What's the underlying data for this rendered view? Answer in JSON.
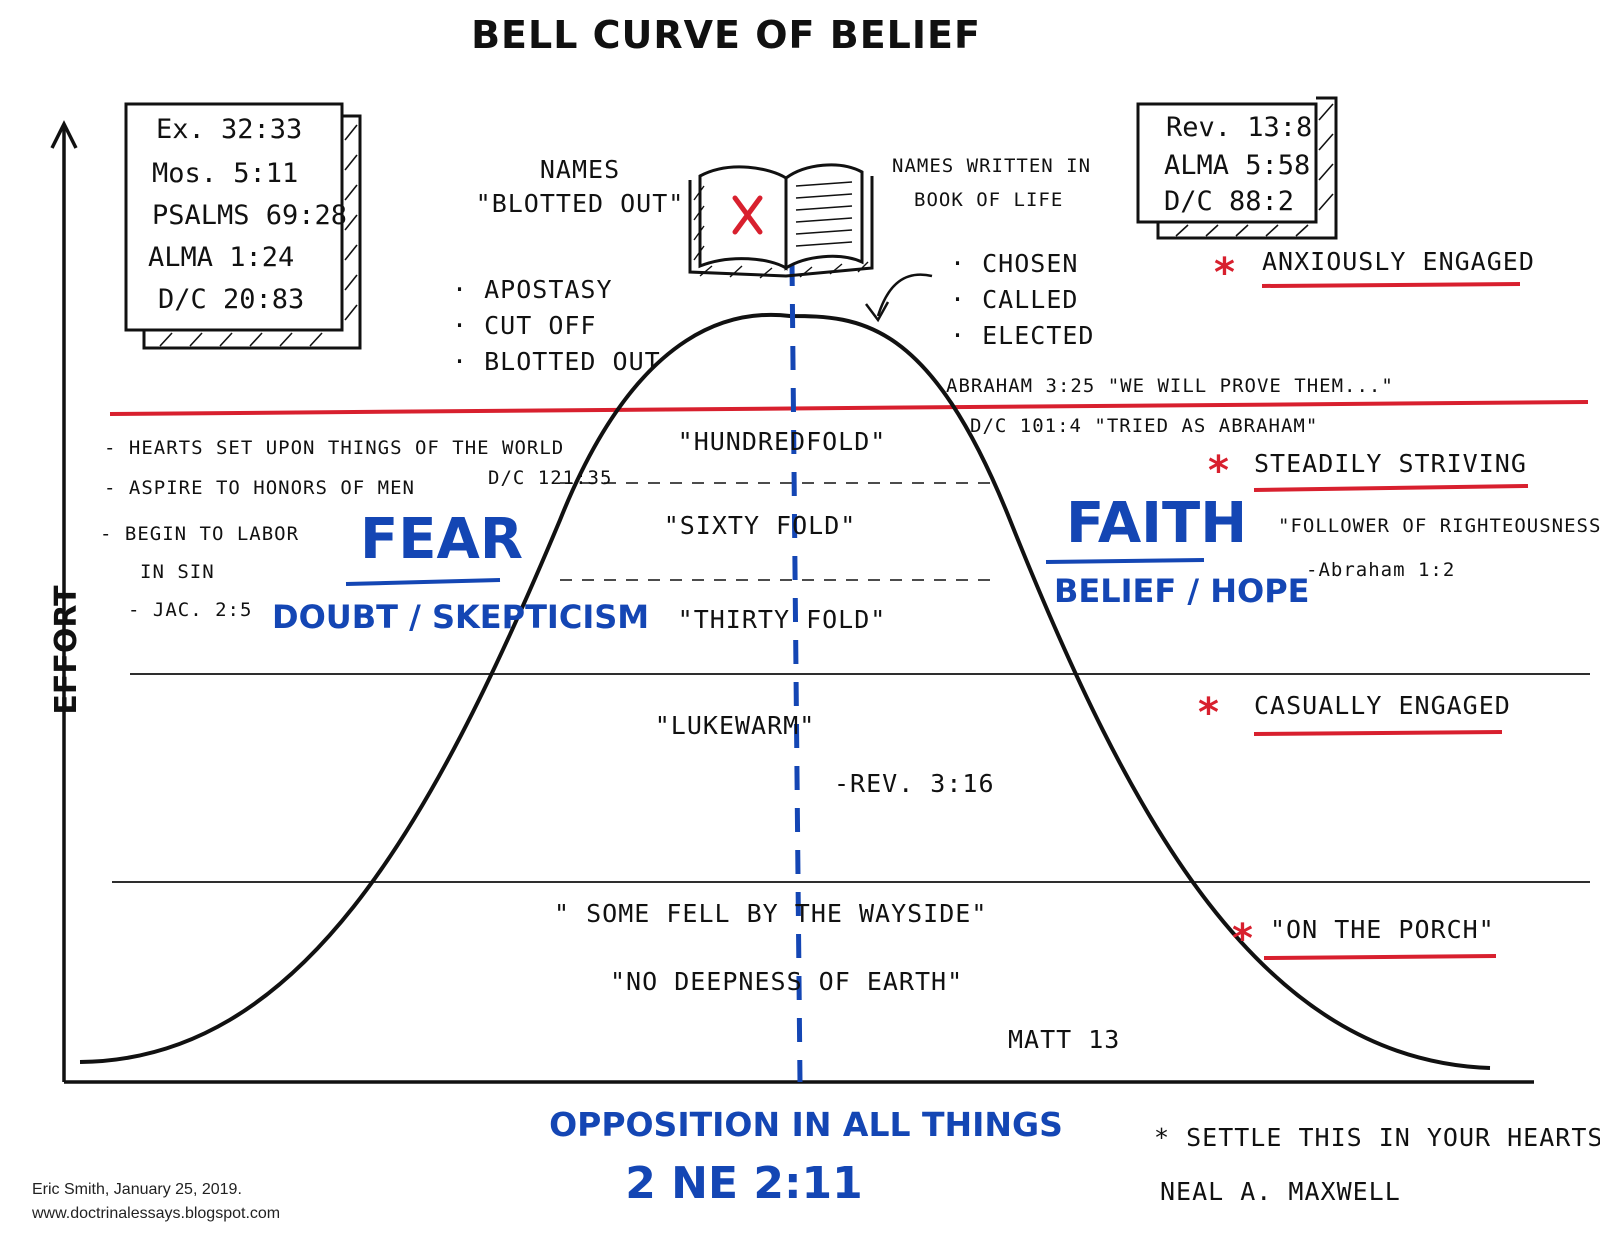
{
  "title": "BELL CURVE OF BELIEF",
  "axis_label": "EFFORT",
  "colors": {
    "accent_red": "#d8202e",
    "accent_blue": "#1446b4",
    "ink": "#111111"
  },
  "left_box": {
    "refs": [
      "Ex. 32:33",
      "Mos. 5:11",
      "PSALMS 69:28",
      "ALMA 1:24",
      "D/C 20:83"
    ]
  },
  "right_box": {
    "refs": [
      "Rev. 13:8",
      "ALMA 5:58",
      "D/C 88:2"
    ]
  },
  "book": {
    "left_label": [
      "NAMES",
      "\"BLOTTED OUT\""
    ],
    "right_label": [
      "NAMES WRITTEN IN",
      "BOOK OF LIFE"
    ],
    "mark_icon": "x-mark-icon"
  },
  "left_top_list": [
    "APOSTASY",
    "CUT OFF",
    "BLOTTED OUT"
  ],
  "right_top_list": [
    "CHOSEN",
    "CALLED",
    "ELECTED"
  ],
  "abraham_line_1": "ABRAHAM 3:25  \"WE WILL PROVE THEM...\"",
  "abraham_line_2": "D/C 101:4  \"TRIED AS ABRAHAM\"",
  "left_list": [
    "- HEARTS SET UPON THINGS OF THE WORLD",
    "- ASPIRE TO HONORS OF MEN",
    "- BEGIN TO LABOR",
    "IN SIN",
    "- JAC. 2:5"
  ],
  "dc_121": "D/C 121:35",
  "fear": {
    "word": "FEAR",
    "sub": "DOUBT / SKEPTICISM"
  },
  "faith": {
    "word": "FAITH",
    "sub": "BELIEF / HOPE"
  },
  "levels": {
    "hundredfold": "\"HUNDREDFOLD\"",
    "sixtyfold": "\"SIXTY FOLD\"",
    "thirtyfold": "\"THIRTY FOLD\"",
    "lukewarm": "\"LUKEWARM\"",
    "rev_ref": "-REV. 3:16",
    "wayside": "\" SOME FELL BY THE WAYSIDE\"",
    "deepness": "\"NO DEEPNESS OF EARTH\"",
    "matt": "MATT 13"
  },
  "engagement": {
    "anxiously": "ANXIOUSLY ENGAGED",
    "steadily": "STEADILY STRIVING",
    "follower": "\"FOLLOWER OF RIGHTEOUSNESS\"",
    "follower_ref": "-Abraham 1:2",
    "casually": "CASUALLY ENGAGED",
    "porch": "\"ON THE PORCH\"",
    "star": "*"
  },
  "bottom": {
    "opposition": "OPPOSITION IN ALL THINGS",
    "ne_ref": "2 NE 2:11",
    "settle": "* SETTLE THIS IN YOUR HEARTS",
    "maxwell": "NEAL A. MAXWELL"
  },
  "credit": {
    "line1": "Eric Smith, January 25, 2019.",
    "line2": "www.doctrinalessays.blogspot.com"
  }
}
